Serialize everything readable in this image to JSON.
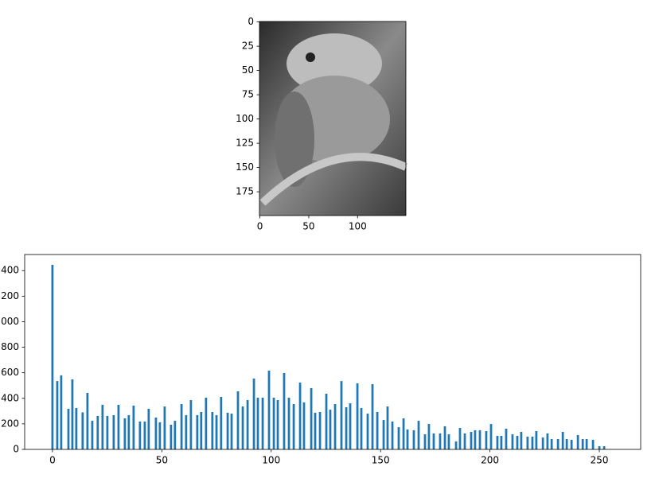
{
  "chart_data": [
    {
      "type": "image",
      "xlim": [
        -0.5,
        149.5
      ],
      "ylim": [
        199.5,
        -0.5
      ],
      "xticks": [
        0,
        50,
        100
      ],
      "yticks": [
        0,
        25,
        50,
        75,
        100,
        125,
        150,
        175
      ]
    },
    {
      "type": "bar",
      "color": "#1f77b4",
      "x": [
        0,
        2.2,
        4.0,
        7.3,
        9.1,
        10.9,
        13.8,
        16.0,
        18.2,
        20.7,
        22.9,
        25.1,
        28.0,
        30.2,
        33.1,
        34.9,
        37.1,
        40.0,
        42.2,
        44.0,
        47.3,
        49.1,
        51.3,
        54.2,
        56.0,
        59.0,
        61.1,
        63.3,
        66.2,
        68.0,
        70.2,
        73.1,
        75.0,
        77.1,
        80.1,
        81.9,
        84.8,
        87.0,
        89.2,
        92.1,
        93.9,
        96.1,
        99.0,
        101.2,
        103.0,
        105.9,
        108.1,
        110.3,
        113.2,
        115.0,
        118.3,
        120.1,
        122.3,
        125.2,
        127.0,
        129.2,
        132.1,
        134.3,
        136.1,
        139.4,
        141.2,
        144.1,
        146.3,
        148.5,
        151.4,
        153.2,
        155.4,
        158.3,
        160.5,
        162.3,
        165.2,
        167.4,
        170.3,
        172.1,
        174.3,
        177.2,
        179.4,
        181.2,
        184.5,
        186.3,
        188.5,
        191.4,
        193.2,
        195.4,
        198.3,
        200.5,
        203.4,
        205.2,
        207.4,
        210.3,
        212.5,
        214.3,
        217.2,
        219.4,
        221.2,
        224.2,
        226.3,
        228.2,
        231.1,
        233.3,
        235.1,
        237.3,
        240.2,
        242.4,
        244.2,
        247.1,
        250.0,
        252.2
      ],
      "values": [
        1445,
        535,
        580,
        318,
        548,
        324,
        290,
        442,
        224,
        262,
        349,
        262,
        268,
        349,
        243,
        268,
        343,
        218,
        218,
        318,
        249,
        212,
        336,
        193,
        224,
        355,
        268,
        386,
        268,
        293,
        405,
        293,
        268,
        411,
        287,
        280,
        455,
        336,
        386,
        555,
        405,
        405,
        617,
        405,
        386,
        598,
        405,
        355,
        523,
        368,
        480,
        287,
        293,
        436,
        311,
        355,
        535,
        330,
        361,
        517,
        324,
        280,
        511,
        293,
        230,
        336,
        218,
        174,
        243,
        156,
        150,
        224,
        118,
        199,
        125,
        125,
        181,
        118,
        62,
        168,
        125,
        137,
        150,
        150,
        143,
        199,
        106,
        106,
        162,
        118,
        106,
        137,
        100,
        100,
        143,
        93,
        125,
        81,
        81,
        137,
        81,
        75,
        112,
        81,
        81,
        75,
        25,
        25
      ],
      "xlim": [
        -12.7,
        268.9
      ],
      "ylim": [
        0,
        1526
      ],
      "xticks": [
        0,
        50,
        100,
        150,
        200,
        250
      ],
      "yticks": [
        0,
        200,
        400,
        600,
        800,
        1000,
        1200,
        1400
      ]
    }
  ]
}
